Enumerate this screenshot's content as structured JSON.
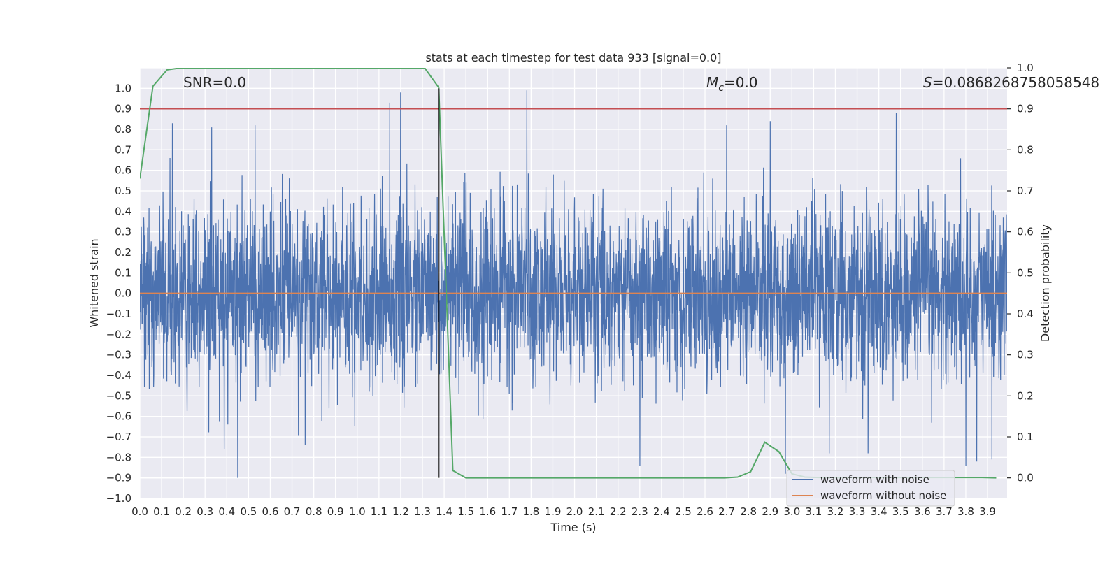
{
  "chart_data": {
    "type": "line",
    "title": "stats at each timestep for test data 933 [signal=0.0]",
    "xlabel": "Time (s)",
    "ylabel": "Whitened strain",
    "y2label": "Detection probability",
    "xlim": [
      0.0,
      3.99
    ],
    "ylim": [
      -1.0,
      1.1
    ],
    "y2lim": [
      -0.05,
      1.0
    ],
    "x_ticks": [
      "0.0",
      "0.1",
      "0.2",
      "0.3",
      "0.4",
      "0.5",
      "0.6",
      "0.7",
      "0.8",
      "0.9",
      "1.0",
      "1.1",
      "1.2",
      "1.3",
      "1.4",
      "1.5",
      "1.6",
      "1.7",
      "1.8",
      "1.9",
      "2.0",
      "2.1",
      "2.2",
      "2.3",
      "2.4",
      "2.5",
      "2.6",
      "2.7",
      "2.8",
      "2.9",
      "3.0",
      "3.1",
      "3.2",
      "3.3",
      "3.4",
      "3.5",
      "3.6",
      "3.7",
      "3.8",
      "3.9"
    ],
    "y_ticks": [
      "1.0",
      "0.9",
      "0.8",
      "0.7",
      "0.6",
      "0.5",
      "0.4",
      "0.3",
      "0.2",
      "0.1",
      "0.0",
      "−0.1",
      "−0.2",
      "−0.3",
      "−0.4",
      "−0.5",
      "−0.6",
      "−0.7",
      "−0.8",
      "−0.9",
      "−1.0"
    ],
    "y2_ticks": [
      "1.0",
      "0.9",
      "0.8",
      "0.7",
      "0.6",
      "0.5",
      "0.4",
      "0.3",
      "0.2",
      "0.1",
      "0.0"
    ],
    "annotations": {
      "snr": "SNR=0.0",
      "mc_symbol": "M",
      "mc_sub": "c",
      "mc_value": "=0.0",
      "s_symbol": "S",
      "s_value": "=0.0868268758058548"
    },
    "series": [
      {
        "name": "waveform with noise",
        "color": "#4c72b0",
        "description": "dense noise signal between about −0.9 and 1.0",
        "spikes": [
          [
            0.15,
            0.83
          ],
          [
            0.33,
            0.81
          ],
          [
            0.45,
            -0.9
          ],
          [
            0.53,
            0.82
          ],
          [
            1.15,
            0.93
          ],
          [
            1.2,
            0.98
          ],
          [
            1.78,
            0.99
          ],
          [
            2.3,
            -0.84
          ],
          [
            2.7,
            0.82
          ],
          [
            2.9,
            0.84
          ],
          [
            2.97,
            -0.88
          ],
          [
            3.35,
            -0.78
          ],
          [
            3.48,
            0.88
          ],
          [
            3.8,
            -0.84
          ],
          [
            3.85,
            -0.82
          ],
          [
            3.92,
            -0.81
          ]
        ]
      },
      {
        "name": "waveform without noise",
        "color": "#dd8452",
        "x": [
          0.0,
          3.99
        ],
        "y": [
          0.0,
          0.0
        ]
      },
      {
        "name": "detection probability",
        "color": "#55a868",
        "axis": "right",
        "x": [
          0.0,
          0.06,
          0.125,
          0.19,
          0.25,
          0.31,
          0.375,
          0.44,
          0.5,
          0.56,
          0.625,
          0.69,
          0.75,
          0.81,
          0.875,
          0.94,
          1.0,
          1.06,
          1.125,
          1.19,
          1.25,
          1.31,
          1.375,
          1.44,
          1.5,
          1.56,
          1.625,
          1.69,
          1.75,
          1.81,
          1.875,
          1.94,
          2.0,
          2.06,
          2.125,
          2.19,
          2.25,
          2.31,
          2.375,
          2.44,
          2.5,
          2.56,
          2.625,
          2.69,
          2.75,
          2.81,
          2.875,
          2.94,
          3.0,
          3.06,
          3.125,
          3.19,
          3.25,
          3.31,
          3.375,
          3.44,
          3.5,
          3.56,
          3.625,
          3.69,
          3.75,
          3.81,
          3.875,
          3.94
        ],
        "y": [
          0.73,
          0.955,
          0.995,
          1.0,
          1.0,
          1.0,
          1.0,
          1.0,
          1.0,
          1.0,
          1.0,
          1.0,
          1.0,
          1.0,
          1.0,
          1.0,
          1.0,
          1.0,
          1.0,
          1.0,
          1.0,
          1.0,
          0.952,
          0.018,
          0.0,
          0.0,
          0.0,
          0.0,
          0.0,
          0.0,
          0.0,
          0.0,
          0.0,
          0.0,
          0.0,
          0.0,
          0.0,
          0.0,
          0.0,
          0.0,
          0.0,
          0.0,
          0.0,
          0.0,
          0.002,
          0.015,
          0.087,
          0.064,
          0.01,
          0.002,
          0.001,
          0.001,
          0.001,
          0.001,
          0.001,
          0.001,
          0.001,
          0.001,
          0.001,
          0.001,
          0.001,
          0.001,
          0.001,
          0.0
        ]
      }
    ],
    "reference_lines": [
      {
        "orientation": "horizontal",
        "axis": "right",
        "value": 0.9,
        "color": "#c44e52"
      },
      {
        "orientation": "vertical",
        "value": 1.375,
        "y_from": -0.9,
        "y_to": 1.0,
        "color": "#000000"
      }
    ],
    "legend": {
      "placement": "lower-right",
      "entries": [
        "waveform with noise",
        "waveform without noise"
      ]
    },
    "grid": true,
    "colors": {
      "background": "#eaeaf2",
      "grid": "#ffffff"
    }
  }
}
